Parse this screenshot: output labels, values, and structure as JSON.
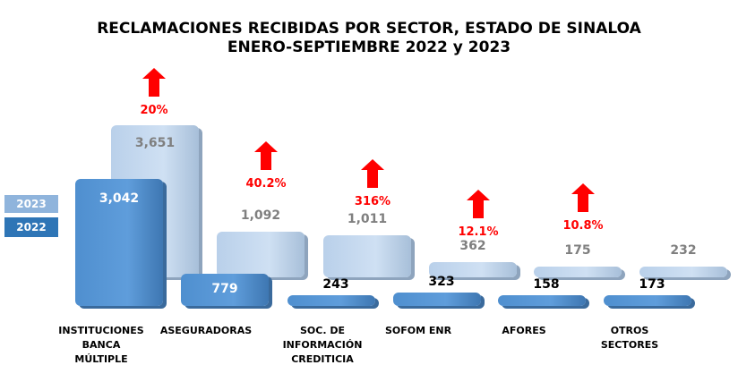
{
  "chart_data": {
    "type": "bar",
    "title": "RECLAMACIONES RECIBIDAS POR SECTOR, ESTADO DE SINALOA",
    "subtitle": "ENERO-SEPTIEMBRE 2022 y 2023",
    "categories": [
      "INSTITUCIONES BANCA MÚLTIPLE",
      "ASEGURADORAS",
      "SOC. DE INFORMACIÓN CREDITICIA",
      "SOFOM ENR",
      "AFORES",
      "OTROS SECTORES"
    ],
    "series": [
      {
        "name": "2023",
        "values": [
          3651,
          1092,
          1011,
          362,
          175,
          232
        ],
        "labels": [
          "3,651",
          "1,092",
          "1,011",
          "362",
          "175",
          "232"
        ],
        "color": "#bdd4ee"
      },
      {
        "name": "2022",
        "values": [
          3042,
          779,
          243,
          323,
          158,
          173
        ],
        "labels": [
          "3,042",
          "779",
          "243",
          "323",
          "158",
          "173"
        ],
        "color": "#5b9bd5"
      }
    ],
    "changes": [
      "20%",
      "40.2%",
      "316%",
      "12.1%",
      "10.8%",
      null
    ],
    "change_color": "#ff0000",
    "legend_position": "left",
    "grid": false
  }
}
